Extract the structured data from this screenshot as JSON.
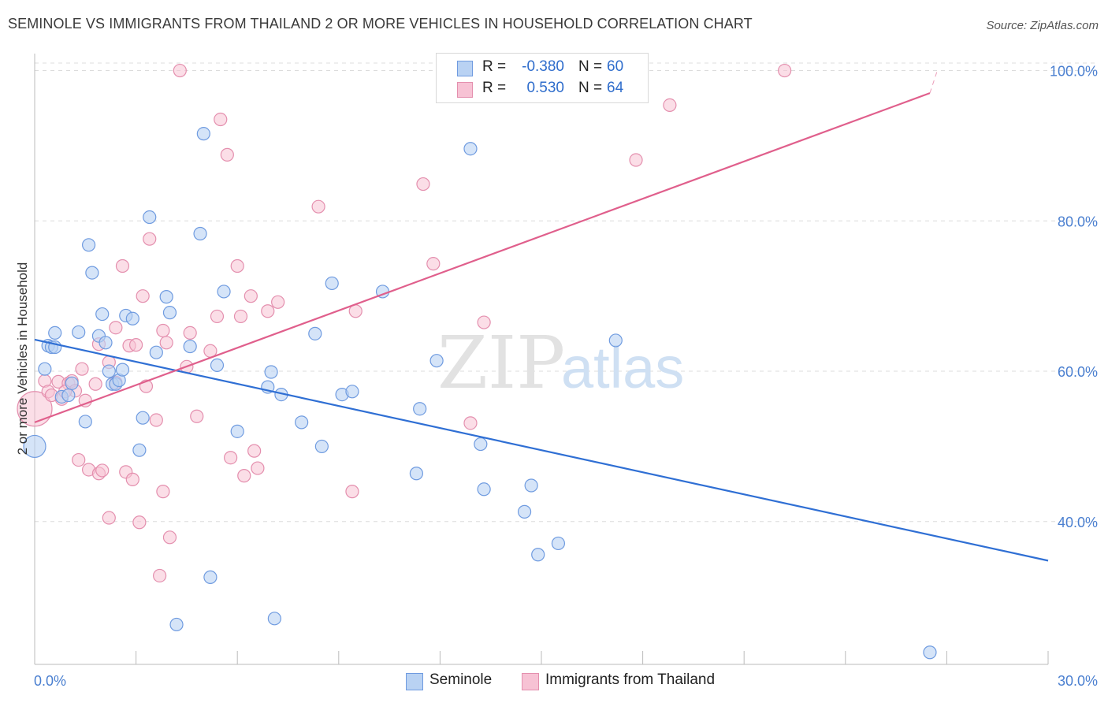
{
  "title": "SEMINOLE VS IMMIGRANTS FROM THAILAND 2 OR MORE VEHICLES IN HOUSEHOLD CORRELATION CHART",
  "source": "Source: ZipAtlas.com",
  "watermark": {
    "zip": "ZIP",
    "atlas": "atlas"
  },
  "colors": {
    "blue": "#2f6fd4",
    "blue_fill": "#b9d2f3",
    "pink": "#e05f8c",
    "pink_fill": "#f7c2d4",
    "tick_text": "#4a7fd0",
    "grid": "#dcdcdc"
  },
  "legend": {
    "rows": [
      {
        "r_label": "R =",
        "r_value": "-0.380",
        "n_label": "N =",
        "n_value": "60"
      },
      {
        "r_label": "R =",
        "r_value": "0.530",
        "n_label": "N =",
        "n_value": "64"
      }
    ]
  },
  "bottom_legend": {
    "series1": "Seminole",
    "series2": "Immigrants from Thailand"
  },
  "chart_data": {
    "type": "scatter",
    "title": "SEMINOLE VS IMMIGRANTS FROM THAILAND 2 OR MORE VEHICLES IN HOUSEHOLD CORRELATION CHART",
    "xlabel": "",
    "ylabel": "2 or more Vehicles in Household",
    "xlim": [
      0,
      30
    ],
    "ylim": [
      21,
      101
    ],
    "x_tick_labels": [
      "0.0%",
      "30.0%"
    ],
    "y_ticks": [
      40,
      60,
      80,
      100
    ],
    "y_tick_labels": [
      "40.0%",
      "60.0%",
      "80.0%",
      "100.0%"
    ],
    "grid": true,
    "legend_position": "top-center",
    "series": [
      {
        "name": "Seminole",
        "color": "#2f6fd4",
        "r": -0.38,
        "n": 60,
        "trend": {
          "x": [
            0,
            30
          ],
          "y": [
            64.2,
            34.8
          ]
        },
        "points": [
          [
            0.0,
            50.0
          ],
          [
            0.3,
            60.3
          ],
          [
            0.4,
            63.4
          ],
          [
            0.5,
            63.2
          ],
          [
            0.6,
            65.1
          ],
          [
            0.8,
            56.6
          ],
          [
            1.0,
            56.8
          ],
          [
            1.1,
            58.4
          ],
          [
            1.3,
            65.2
          ],
          [
            1.5,
            53.3
          ],
          [
            1.6,
            76.8
          ],
          [
            1.7,
            73.1
          ],
          [
            1.9,
            64.7
          ],
          [
            2.0,
            67.6
          ],
          [
            2.1,
            63.8
          ],
          [
            2.2,
            60.0
          ],
          [
            2.3,
            58.3
          ],
          [
            2.4,
            58.3
          ],
          [
            2.5,
            58.8
          ],
          [
            2.6,
            60.2
          ],
          [
            2.7,
            67.4
          ],
          [
            2.9,
            67.0
          ],
          [
            3.1,
            49.5
          ],
          [
            3.2,
            53.8
          ],
          [
            3.4,
            80.5
          ],
          [
            3.6,
            62.5
          ],
          [
            3.9,
            69.9
          ],
          [
            4.0,
            67.8
          ],
          [
            4.2,
            26.3
          ],
          [
            4.6,
            63.3
          ],
          [
            4.9,
            78.3
          ],
          [
            5.0,
            91.6
          ],
          [
            5.2,
            32.6
          ],
          [
            5.4,
            60.8
          ],
          [
            5.6,
            70.6
          ],
          [
            6.0,
            52.0
          ],
          [
            6.9,
            57.9
          ],
          [
            7.0,
            59.9
          ],
          [
            7.1,
            27.1
          ],
          [
            7.3,
            56.9
          ],
          [
            7.9,
            53.2
          ],
          [
            8.3,
            65.0
          ],
          [
            8.5,
            50.0
          ],
          [
            8.8,
            71.7
          ],
          [
            9.1,
            56.9
          ],
          [
            9.4,
            57.3
          ],
          [
            10.3,
            70.6
          ],
          [
            11.3,
            46.4
          ],
          [
            11.4,
            55.0
          ],
          [
            11.9,
            61.4
          ],
          [
            12.9,
            89.6
          ],
          [
            13.2,
            50.3
          ],
          [
            13.3,
            44.3
          ],
          [
            14.5,
            41.3
          ],
          [
            14.7,
            44.8
          ],
          [
            14.9,
            35.6
          ],
          [
            15.5,
            37.1
          ],
          [
            17.2,
            64.1
          ],
          [
            26.5,
            22.6
          ],
          [
            0.6,
            63.2
          ]
        ]
      },
      {
        "name": "Immigrants from Thailand",
        "color": "#e05f8c",
        "r": 0.53,
        "n": 64,
        "trend": {
          "x": [
            0,
            26.5
          ],
          "y": [
            53.2,
            97.0
          ]
        },
        "trend_dashed": {
          "x": [
            26.5,
            30
          ],
          "y": [
            97.0,
            102.8
          ]
        },
        "points": [
          [
            0.0,
            55.0
          ],
          [
            0.3,
            58.7
          ],
          [
            0.4,
            57.3
          ],
          [
            0.5,
            56.8
          ],
          [
            0.7,
            58.6
          ],
          [
            0.8,
            56.3
          ],
          [
            1.0,
            58.4
          ],
          [
            1.1,
            58.7
          ],
          [
            1.2,
            57.4
          ],
          [
            1.3,
            48.2
          ],
          [
            1.4,
            60.3
          ],
          [
            1.5,
            56.1
          ],
          [
            1.6,
            46.9
          ],
          [
            1.8,
            58.3
          ],
          [
            1.9,
            63.6
          ],
          [
            1.9,
            46.4
          ],
          [
            2.0,
            46.8
          ],
          [
            2.2,
            61.2
          ],
          [
            2.2,
            40.5
          ],
          [
            2.4,
            58.5
          ],
          [
            2.4,
            65.8
          ],
          [
            2.6,
            74.0
          ],
          [
            2.7,
            46.6
          ],
          [
            2.8,
            63.4
          ],
          [
            2.9,
            45.6
          ],
          [
            3.0,
            63.5
          ],
          [
            3.1,
            39.9
          ],
          [
            3.2,
            70.0
          ],
          [
            3.3,
            58.0
          ],
          [
            3.4,
            77.6
          ],
          [
            3.6,
            53.5
          ],
          [
            3.7,
            32.8
          ],
          [
            3.8,
            44.0
          ],
          [
            3.8,
            65.4
          ],
          [
            3.9,
            63.8
          ],
          [
            4.0,
            37.9
          ],
          [
            4.3,
            100.0
          ],
          [
            4.5,
            60.6
          ],
          [
            4.6,
            65.1
          ],
          [
            4.8,
            54.0
          ],
          [
            5.2,
            62.7
          ],
          [
            5.4,
            67.3
          ],
          [
            5.5,
            93.5
          ],
          [
            5.7,
            88.8
          ],
          [
            5.8,
            48.5
          ],
          [
            6.0,
            74.0
          ],
          [
            6.1,
            67.3
          ],
          [
            6.2,
            46.1
          ],
          [
            6.4,
            70.0
          ],
          [
            6.5,
            49.4
          ],
          [
            6.6,
            47.1
          ],
          [
            6.9,
            68.0
          ],
          [
            7.2,
            69.2
          ],
          [
            8.4,
            81.9
          ],
          [
            9.4,
            44.0
          ],
          [
            9.5,
            68.0
          ],
          [
            11.5,
            84.9
          ],
          [
            11.8,
            74.3
          ],
          [
            12.9,
            53.1
          ],
          [
            13.3,
            66.5
          ],
          [
            17.8,
            88.1
          ],
          [
            18.8,
            95.4
          ],
          [
            22.2,
            100.0
          ],
          [
            0.9,
            57.3
          ]
        ]
      }
    ]
  }
}
